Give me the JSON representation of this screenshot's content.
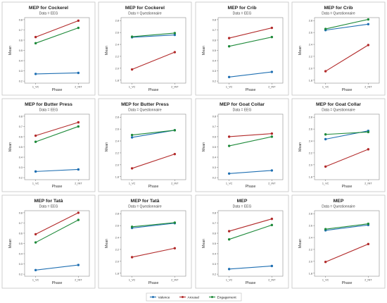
{
  "legend": {
    "items": [
      {
        "name": "Valence",
        "color": "#1f6fb2"
      },
      {
        "name": "Arousal",
        "color": "#b22a2a"
      },
      {
        "name": "Engagement",
        "color": "#1e8a3a"
      }
    ]
  },
  "chart_data": [
    {
      "type": "line",
      "title": "MEP for Cockerel",
      "subtitle": "Data = EEG",
      "xlabel": "Phase",
      "ylabel": "Mean",
      "categories": [
        "1_VC",
        "2_INT"
      ],
      "ylim": [
        0.18,
        0.82
      ],
      "yticks": [
        "0.2",
        "0.3",
        "0.4",
        "0.5",
        "0.6",
        "0.7",
        "0.8"
      ],
      "series": [
        {
          "name": "Valence",
          "values": [
            0.27,
            0.28
          ]
        },
        {
          "name": "Arousal",
          "values": [
            0.63,
            0.79
          ]
        },
        {
          "name": "Engagement",
          "values": [
            0.57,
            0.72
          ]
        }
      ]
    },
    {
      "type": "line",
      "title": "MEP for Cockerel",
      "subtitle": "Data = Questionnaire",
      "xlabel": "Phase",
      "ylabel": "Mean",
      "categories": [
        "1_VC",
        "2_INT"
      ],
      "ylim": [
        1.75,
        2.85
      ],
      "yticks": [
        "1.8",
        "2.0",
        "2.2",
        "2.4",
        "2.6",
        "2.8"
      ],
      "series": [
        {
          "name": "Valence",
          "values": [
            2.52,
            2.56
          ]
        },
        {
          "name": "Arousal",
          "values": [
            1.98,
            2.27
          ]
        },
        {
          "name": "Engagement",
          "values": [
            2.53,
            2.59
          ]
        }
      ]
    },
    {
      "type": "line",
      "title": "MEP for Crib",
      "subtitle": "Data = EEG",
      "xlabel": "Phase",
      "ylabel": "Mean",
      "categories": [
        "1_VC",
        "2_INT"
      ],
      "ylim": [
        0.18,
        0.82
      ],
      "yticks": [
        "0.2",
        "0.3",
        "0.4",
        "0.5",
        "0.6",
        "0.7",
        "0.8"
      ],
      "series": [
        {
          "name": "Valence",
          "values": [
            0.24,
            0.29
          ]
        },
        {
          "name": "Arousal",
          "values": [
            0.62,
            0.72
          ]
        },
        {
          "name": "Engagement",
          "values": [
            0.54,
            0.63
          ]
        }
      ]
    },
    {
      "type": "line",
      "title": "MEP for Crib",
      "subtitle": "Data = Questionnaire",
      "xlabel": "Phase",
      "ylabel": "Mean",
      "categories": [
        "1_VC",
        "2_INT"
      ],
      "ylim": [
        1.75,
        2.85
      ],
      "yticks": [
        "1.8",
        "2.0",
        "2.2",
        "2.4",
        "2.6",
        "2.8"
      ],
      "series": [
        {
          "name": "Valence",
          "values": [
            2.64,
            2.74
          ]
        },
        {
          "name": "Arousal",
          "values": [
            1.95,
            2.39
          ]
        },
        {
          "name": "Engagement",
          "values": [
            2.66,
            2.82
          ]
        }
      ]
    },
    {
      "type": "line",
      "title": "MEP for Butter Press",
      "subtitle": "Data = EEG",
      "xlabel": "Phase",
      "ylabel": "Mean",
      "categories": [
        "1_VC",
        "2_INT"
      ],
      "ylim": [
        0.18,
        0.82
      ],
      "yticks": [
        "0.2",
        "0.3",
        "0.4",
        "0.5",
        "0.6",
        "0.7",
        "0.8"
      ],
      "series": [
        {
          "name": "Valence",
          "values": [
            0.26,
            0.28
          ]
        },
        {
          "name": "Arousal",
          "values": [
            0.61,
            0.74
          ]
        },
        {
          "name": "Engagement",
          "values": [
            0.55,
            0.7
          ]
        }
      ]
    },
    {
      "type": "line",
      "title": "MEP for Butter Press",
      "subtitle": "Data = Questionnaire",
      "xlabel": "Phase",
      "ylabel": "Mean",
      "categories": [
        "1_VC",
        "2_INT"
      ],
      "ylim": [
        1.75,
        2.85
      ],
      "yticks": [
        "1.8",
        "2.0",
        "2.2",
        "2.4",
        "2.6",
        "2.8"
      ],
      "series": [
        {
          "name": "Valence",
          "values": [
            2.46,
            2.58
          ]
        },
        {
          "name": "Arousal",
          "values": [
            1.94,
            2.18
          ]
        },
        {
          "name": "Engagement",
          "values": [
            2.5,
            2.58
          ]
        }
      ]
    },
    {
      "type": "line",
      "title": "MEP for Goat Collar",
      "subtitle": "Data = EEG",
      "xlabel": "Phase",
      "ylabel": "Mean",
      "categories": [
        "1_VC",
        "2_INT"
      ],
      "ylim": [
        0.18,
        0.82
      ],
      "yticks": [
        "0.2",
        "0.3",
        "0.4",
        "0.5",
        "0.6",
        "0.7",
        "0.8"
      ],
      "series": [
        {
          "name": "Valence",
          "values": [
            0.24,
            0.27
          ]
        },
        {
          "name": "Arousal",
          "values": [
            0.6,
            0.63
          ]
        },
        {
          "name": "Engagement",
          "values": [
            0.51,
            0.6
          ]
        }
      ]
    },
    {
      "type": "line",
      "title": "MEP for Goat Collar",
      "subtitle": "Data = Questionnaire",
      "xlabel": "Phase",
      "ylabel": "Mean",
      "categories": [
        "1_VC",
        "2_INT"
      ],
      "ylim": [
        1.75,
        2.85
      ],
      "yticks": [
        "1.8",
        "2.0",
        "2.2",
        "2.4",
        "2.6",
        "2.8"
      ],
      "series": [
        {
          "name": "Valence",
          "values": [
            2.43,
            2.57
          ]
        },
        {
          "name": "Arousal",
          "values": [
            1.97,
            2.26
          ]
        },
        {
          "name": "Engagement",
          "values": [
            2.51,
            2.55
          ]
        }
      ]
    },
    {
      "type": "line",
      "title": "MEP for Tatâ",
      "subtitle": "Data = EEG",
      "xlabel": "Phase",
      "ylabel": "Mean",
      "categories": [
        "1_VC",
        "2_INT"
      ],
      "ylim": [
        0.18,
        0.82
      ],
      "yticks": [
        "0.2",
        "0.3",
        "0.4",
        "0.5",
        "0.6",
        "0.7",
        "0.8"
      ],
      "series": [
        {
          "name": "Valence",
          "values": [
            0.24,
            0.29
          ]
        },
        {
          "name": "Arousal",
          "values": [
            0.59,
            0.8
          ]
        },
        {
          "name": "Engagement",
          "values": [
            0.51,
            0.73
          ]
        }
      ]
    },
    {
      "type": "line",
      "title": "MEP for Tatâ",
      "subtitle": "Data = Questionnaire",
      "xlabel": "Phase",
      "ylabel": "Mean",
      "categories": [
        "1_VC",
        "2_INT"
      ],
      "ylim": [
        1.75,
        2.85
      ],
      "yticks": [
        "1.8",
        "2.0",
        "2.2",
        "2.4",
        "2.6",
        "2.8"
      ],
      "series": [
        {
          "name": "Valence",
          "values": [
            2.56,
            2.64
          ]
        },
        {
          "name": "Arousal",
          "values": [
            2.07,
            2.22
          ]
        },
        {
          "name": "Engagement",
          "values": [
            2.58,
            2.65
          ]
        }
      ]
    },
    {
      "type": "line",
      "title": "MEP",
      "subtitle": "Data = EEG",
      "xlabel": "Phase",
      "ylabel": "Mean",
      "categories": [
        "1_VC",
        "2_INT"
      ],
      "ylim": [
        0.18,
        0.82
      ],
      "yticks": [
        "0.2",
        "0.3",
        "0.4",
        "0.5",
        "0.6",
        "0.7",
        "0.8"
      ],
      "series": [
        {
          "name": "Valence",
          "values": [
            0.25,
            0.28
          ]
        },
        {
          "name": "Arousal",
          "values": [
            0.62,
            0.74
          ]
        },
        {
          "name": "Engagement",
          "values": [
            0.54,
            0.68
          ]
        }
      ]
    },
    {
      "type": "line",
      "title": "MEP",
      "subtitle": "Data = Questionnaire",
      "xlabel": "Phase",
      "ylabel": "Mean",
      "categories": [
        "1_VC",
        "2_INT"
      ],
      "ylim": [
        1.75,
        2.85
      ],
      "yticks": [
        "1.8",
        "2.0",
        "2.2",
        "2.4",
        "2.6",
        "2.8"
      ],
      "series": [
        {
          "name": "Valence",
          "values": [
            2.52,
            2.61
          ]
        },
        {
          "name": "Arousal",
          "values": [
            1.99,
            2.29
          ]
        },
        {
          "name": "Engagement",
          "values": [
            2.54,
            2.63
          ]
        }
      ]
    }
  ]
}
